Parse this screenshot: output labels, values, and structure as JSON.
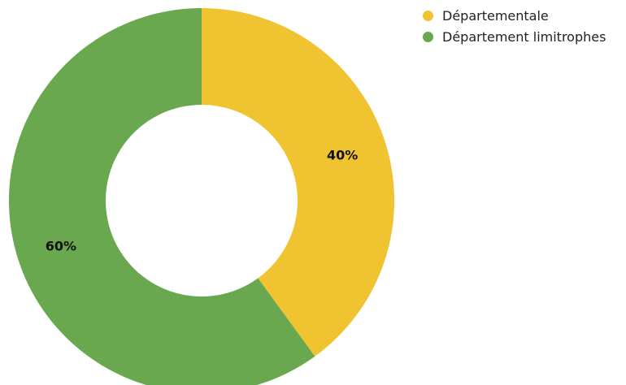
{
  "chart_data": {
    "type": "pie",
    "donut": true,
    "title": "",
    "legend_position": "top-right",
    "series": [
      {
        "name": "Départementale",
        "value": 40,
        "label": "40%",
        "color": "#f0c330"
      },
      {
        "name": "Département limitrophes",
        "value": 60,
        "label": "60%",
        "color": "#6aa84f"
      }
    ]
  }
}
